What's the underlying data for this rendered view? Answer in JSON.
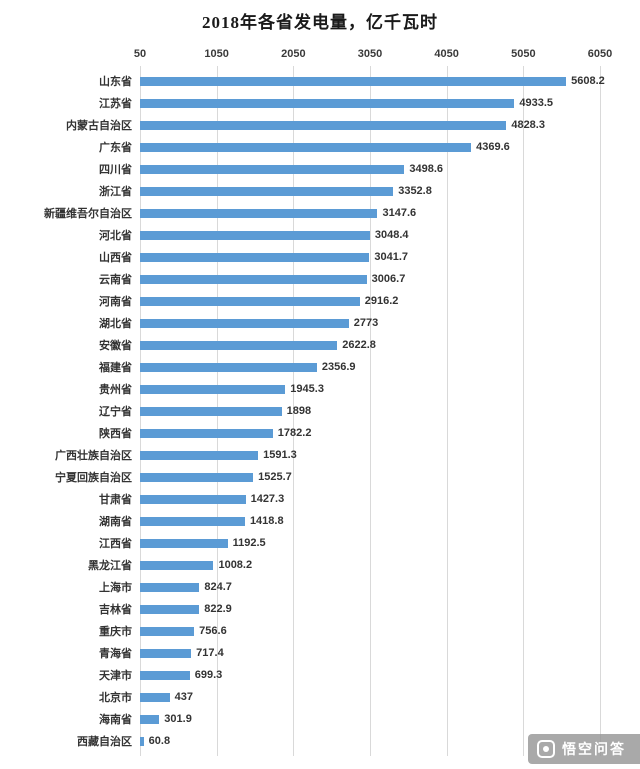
{
  "chart_data": {
    "type": "bar",
    "orientation": "horizontal",
    "title": "2018年各省发电量，亿千瓦时",
    "categories": [
      "山东省",
      "江苏省",
      "内蒙古自治区",
      "广东省",
      "四川省",
      "浙江省",
      "新疆维吾尔自治区",
      "河北省",
      "山西省",
      "云南省",
      "河南省",
      "湖北省",
      "安徽省",
      "福建省",
      "贵州省",
      "辽宁省",
      "陕西省",
      "广西壮族自治区",
      "宁夏回族自治区",
      "甘肃省",
      "湖南省",
      "江西省",
      "黑龙江省",
      "上海市",
      "吉林省",
      "重庆市",
      "青海省",
      "天津市",
      "北京市",
      "海南省",
      "西藏自治区"
    ],
    "values": [
      5608.2,
      4933.5,
      4828.3,
      4369.6,
      3498.6,
      3352.8,
      3147.6,
      3048.4,
      3041.7,
      3006.7,
      2916.2,
      2773,
      2622.8,
      2356.9,
      1945.3,
      1898,
      1782.2,
      1591.3,
      1525.7,
      1427.3,
      1418.8,
      1192.5,
      1008.2,
      824.7,
      822.9,
      756.6,
      717.4,
      699.3,
      437,
      301.9,
      60.8
    ],
    "x_ticks": [
      50,
      1050,
      2050,
      3050,
      4050,
      5050,
      6050
    ],
    "xlim": [
      50,
      6050
    ],
    "bar_color": "#5b9bd5",
    "grid": true,
    "legend_position": "none"
  },
  "watermark": {
    "text": "悟空问答",
    "logo": "wukong-logo-icon"
  }
}
